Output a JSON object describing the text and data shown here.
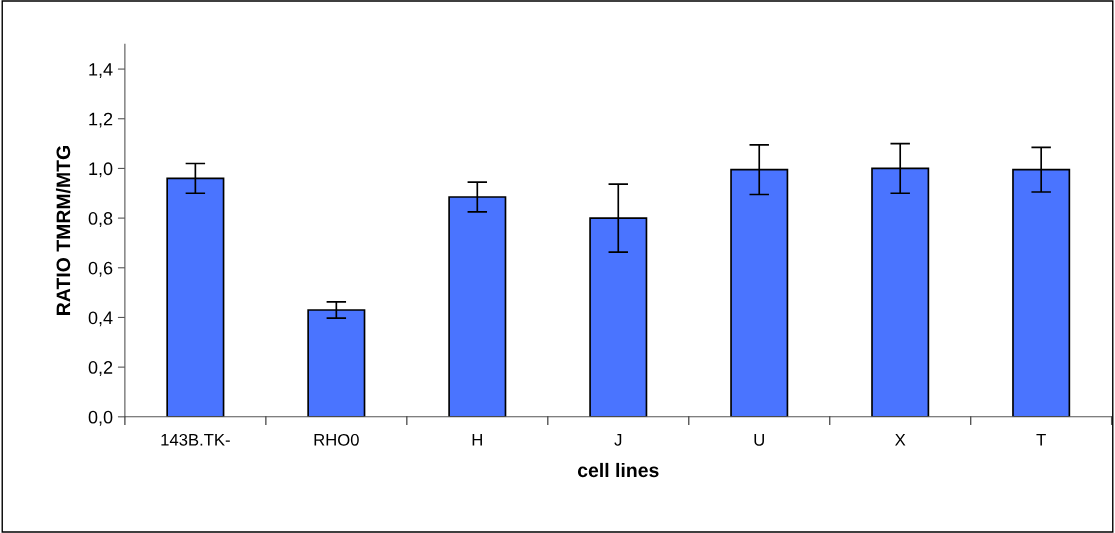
{
  "chart_data": {
    "type": "bar",
    "xlabel": "cell lines",
    "ylabel": "RATIO TMRM/MTG",
    "categories": [
      "143B.TK-",
      "RHO0",
      "H",
      "J",
      "U",
      "X",
      "T"
    ],
    "values": [
      0.96,
      0.43,
      0.885,
      0.8,
      0.995,
      1.0,
      0.995
    ],
    "errors": [
      0.06,
      0.033,
      0.06,
      0.137,
      0.1,
      0.1,
      0.09
    ],
    "color": "#4a74ff",
    "ylim": [
      0,
      1.5
    ],
    "yticks": [
      {
        "value": 0,
        "label": "0,0"
      },
      {
        "value": 0.2,
        "label": "0,2"
      },
      {
        "value": 0.4,
        "label": "0,4"
      },
      {
        "value": 0.6,
        "label": "0,6"
      },
      {
        "value": 0.8,
        "label": "0,8"
      },
      {
        "value": 1.0,
        "label": "1,0"
      },
      {
        "value": 1.2,
        "label": "1,2"
      },
      {
        "value": 1.4,
        "label": "1,4"
      }
    ],
    "grid": false,
    "legend": false
  }
}
